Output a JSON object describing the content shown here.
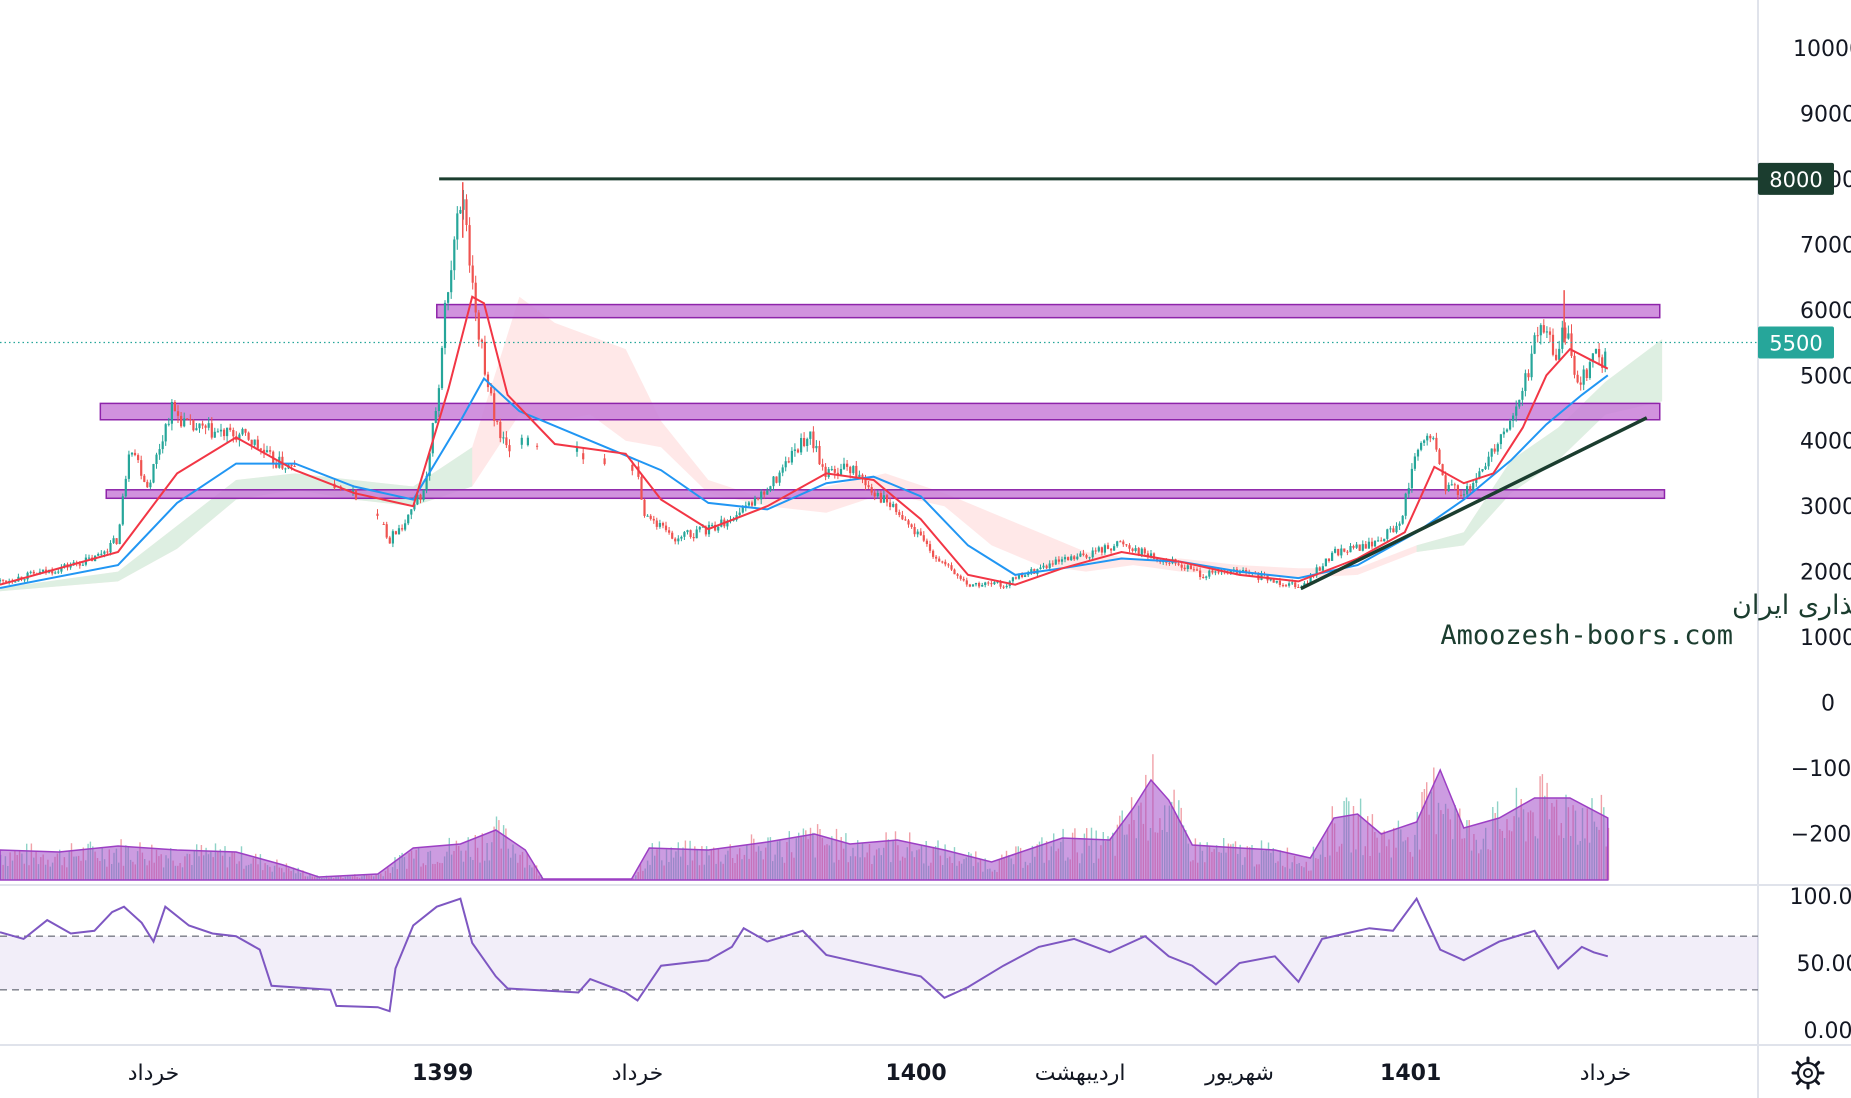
{
  "chart_data": {
    "type": "candlestick",
    "price_axis": {
      "ticks": [
        "10000",
        "9000",
        "8000",
        "7000",
        "6000",
        "5000",
        "4000",
        "3000",
        "2000",
        "1000",
        "0",
        "−1000",
        "−2000"
      ],
      "range": [
        -2400,
        10300
      ]
    },
    "rsi_axis": {
      "ticks": [
        "100.00",
        "50.00",
        "0.00"
      ],
      "upper_band": 70,
      "lower_band": 30
    },
    "time_axis": [
      {
        "label": "خرداد",
        "bold": false
      },
      {
        "label": "1399",
        "bold": true
      },
      {
        "label": "خرداد",
        "bold": false
      },
      {
        "label": "1400",
        "bold": true
      },
      {
        "label": "اردیبهشت",
        "bold": false
      },
      {
        "label": "شهریور",
        "bold": false
      },
      {
        "label": "1401",
        "bold": true
      },
      {
        "label": "خرداد",
        "bold": false
      }
    ],
    "badges": [
      {
        "label": "8000",
        "value": 8000,
        "color": "#1b3d2f"
      },
      {
        "label": "5500",
        "value": 5500,
        "color": "#26a69a"
      }
    ],
    "horizontal_line": {
      "value": 8000,
      "color": "#1b3d2f"
    },
    "zones": [
      {
        "from": 5880,
        "to": 6080,
        "color": "#c97fd8"
      },
      {
        "from": 4320,
        "to": 4570,
        "color": "#c97fd8"
      },
      {
        "from": 3120,
        "to": 3250,
        "color": "#c97fd8"
      }
    ],
    "trendline": {
      "from_value": 1740,
      "to_value": 4350,
      "color": "#1b3d2f"
    },
    "close_path": [
      [
        0,
        1850
      ],
      [
        40,
        2000
      ],
      [
        80,
        2200
      ],
      [
        100,
        2500
      ],
      [
        110,
        4000
      ],
      [
        125,
        3300
      ],
      [
        145,
        4500
      ],
      [
        160,
        4200
      ],
      [
        190,
        4100
      ],
      [
        210,
        4050
      ],
      [
        230,
        3700
      ],
      [
        280,
        3350
      ],
      [
        310,
        3100
      ],
      [
        330,
        2500
      ],
      [
        345,
        2800
      ],
      [
        360,
        3300
      ],
      [
        370,
        4600
      ],
      [
        380,
        6500
      ],
      [
        392,
        7800
      ],
      [
        402,
        6000
      ],
      [
        410,
        5200
      ],
      [
        420,
        4200
      ],
      [
        430,
        3950
      ],
      [
        470,
        3900
      ],
      [
        540,
        3600
      ],
      [
        545,
        2900
      ],
      [
        570,
        2500
      ],
      [
        600,
        2650
      ],
      [
        630,
        2900
      ],
      [
        650,
        3250
      ],
      [
        665,
        3600
      ],
      [
        685,
        4100
      ],
      [
        700,
        3500
      ],
      [
        720,
        3600
      ],
      [
        740,
        3250
      ],
      [
        760,
        2900
      ],
      [
        780,
        2500
      ],
      [
        800,
        2100
      ],
      [
        820,
        1800
      ],
      [
        850,
        1800
      ],
      [
        880,
        2050
      ],
      [
        920,
        2250
      ],
      [
        950,
        2450
      ],
      [
        980,
        2200
      ],
      [
        1000,
        2100
      ],
      [
        1020,
        1950
      ],
      [
        1050,
        2000
      ],
      [
        1080,
        1850
      ],
      [
        1105,
        1800
      ],
      [
        1130,
        2300
      ],
      [
        1160,
        2400
      ],
      [
        1185,
        2700
      ],
      [
        1200,
        3800
      ],
      [
        1212,
        4100
      ],
      [
        1225,
        3300
      ],
      [
        1245,
        3200
      ],
      [
        1265,
        3900
      ],
      [
        1285,
        4500
      ],
      [
        1295,
        5100
      ],
      [
        1305,
        5800
      ],
      [
        1318,
        5300
      ],
      [
        1325,
        5700
      ],
      [
        1338,
        4900
      ],
      [
        1350,
        5300
      ],
      [
        1362,
        5200
      ]
    ],
    "ma_fast": [
      [
        0,
        1800
      ],
      [
        100,
        2300
      ],
      [
        150,
        3500
      ],
      [
        200,
        4050
      ],
      [
        250,
        3550
      ],
      [
        300,
        3200
      ],
      [
        350,
        3000
      ],
      [
        380,
        4800
      ],
      [
        400,
        6200
      ],
      [
        410,
        6100
      ],
      [
        430,
        4700
      ],
      [
        470,
        3950
      ],
      [
        530,
        3800
      ],
      [
        560,
        3100
      ],
      [
        600,
        2650
      ],
      [
        650,
        3000
      ],
      [
        700,
        3500
      ],
      [
        740,
        3400
      ],
      [
        780,
        2800
      ],
      [
        820,
        1950
      ],
      [
        860,
        1800
      ],
      [
        900,
        2050
      ],
      [
        950,
        2300
      ],
      [
        1000,
        2150
      ],
      [
        1050,
        1950
      ],
      [
        1100,
        1850
      ],
      [
        1150,
        2200
      ],
      [
        1190,
        2600
      ],
      [
        1215,
        3600
      ],
      [
        1240,
        3350
      ],
      [
        1265,
        3500
      ],
      [
        1290,
        4200
      ],
      [
        1310,
        5000
      ],
      [
        1330,
        5400
      ],
      [
        1362,
        5100
      ]
    ],
    "ma_slow": [
      [
        0,
        1750
      ],
      [
        100,
        2100
      ],
      [
        150,
        3050
      ],
      [
        200,
        3650
      ],
      [
        250,
        3650
      ],
      [
        300,
        3300
      ],
      [
        350,
        3100
      ],
      [
        390,
        4300
      ],
      [
        410,
        4950
      ],
      [
        440,
        4450
      ],
      [
        500,
        4000
      ],
      [
        560,
        3550
      ],
      [
        600,
        3050
      ],
      [
        650,
        2950
      ],
      [
        700,
        3350
      ],
      [
        740,
        3450
      ],
      [
        780,
        3150
      ],
      [
        820,
        2400
      ],
      [
        860,
        1950
      ],
      [
        900,
        2050
      ],
      [
        950,
        2200
      ],
      [
        1000,
        2150
      ],
      [
        1050,
        2000
      ],
      [
        1100,
        1900
      ],
      [
        1150,
        2100
      ],
      [
        1200,
        2600
      ],
      [
        1240,
        3100
      ],
      [
        1280,
        3700
      ],
      [
        1310,
        4250
      ],
      [
        1340,
        4700
      ],
      [
        1362,
        5000
      ]
    ],
    "cloud": [
      [
        0,
        1750,
        1700
      ],
      [
        100,
        2000,
        1850
      ],
      [
        150,
        2700,
        2350
      ],
      [
        200,
        3400,
        3100
      ],
      [
        250,
        3500,
        3250
      ],
      [
        300,
        3400,
        3100
      ],
      [
        350,
        3300,
        3000
      ],
      [
        400,
        3900,
        3300
      ],
      [
        440,
        6200,
        4400
      ],
      [
        470,
        5800,
        4300
      ],
      [
        500,
        5600,
        4400
      ],
      [
        530,
        5400,
        4000
      ],
      [
        560,
        4300,
        3900
      ],
      [
        600,
        3400,
        3200
      ],
      [
        650,
        3100,
        3000
      ],
      [
        700,
        3300,
        2900
      ],
      [
        750,
        3500,
        3200
      ],
      [
        800,
        3200,
        3000
      ],
      [
        840,
        2900,
        2400
      ],
      [
        880,
        2600,
        2100
      ],
      [
        920,
        2300,
        2000
      ],
      [
        960,
        2200,
        2100
      ],
      [
        1000,
        2200,
        2000
      ],
      [
        1050,
        2100,
        1950
      ],
      [
        1100,
        2050,
        1900
      ],
      [
        1150,
        2050,
        1950
      ],
      [
        1200,
        2400,
        2300
      ],
      [
        1240,
        2600,
        2400
      ],
      [
        1280,
        3700,
        3200
      ],
      [
        1320,
        4200,
        3700
      ],
      [
        1360,
        4900,
        4400
      ],
      [
        1408,
        5550,
        4600
      ]
    ],
    "volume_profile": [
      [
        0,
        0.3
      ],
      [
        50,
        0.28
      ],
      [
        100,
        0.34
      ],
      [
        150,
        0.3
      ],
      [
        200,
        0.28
      ],
      [
        240,
        0.15
      ],
      [
        270,
        0.03
      ],
      [
        320,
        0.06
      ],
      [
        350,
        0.32
      ],
      [
        390,
        0.36
      ],
      [
        420,
        0.5
      ],
      [
        445,
        0.3
      ],
      [
        460,
        0.01
      ],
      [
        535,
        0.01
      ],
      [
        550,
        0.32
      ],
      [
        600,
        0.3
      ],
      [
        650,
        0.38
      ],
      [
        690,
        0.46
      ],
      [
        720,
        0.36
      ],
      [
        760,
        0.4
      ],
      [
        800,
        0.3
      ],
      [
        840,
        0.18
      ],
      [
        860,
        0.26
      ],
      [
        900,
        0.42
      ],
      [
        940,
        0.4
      ],
      [
        960,
        0.72
      ],
      [
        975,
        1.0
      ],
      [
        990,
        0.8
      ],
      [
        1010,
        0.35
      ],
      [
        1050,
        0.32
      ],
      [
        1080,
        0.3
      ],
      [
        1110,
        0.22
      ],
      [
        1130,
        0.62
      ],
      [
        1150,
        0.66
      ],
      [
        1170,
        0.46
      ],
      [
        1200,
        0.58
      ],
      [
        1220,
        1.1
      ],
      [
        1240,
        0.52
      ],
      [
        1270,
        0.62
      ],
      [
        1300,
        0.82
      ],
      [
        1330,
        0.82
      ],
      [
        1362,
        0.62
      ]
    ],
    "rsi": [
      [
        0,
        73
      ],
      [
        20,
        68
      ],
      [
        40,
        82
      ],
      [
        60,
        72
      ],
      [
        80,
        74
      ],
      [
        95,
        88
      ],
      [
        105,
        92
      ],
      [
        120,
        80
      ],
      [
        130,
        66
      ],
      [
        140,
        92
      ],
      [
        160,
        78
      ],
      [
        180,
        72
      ],
      [
        200,
        70
      ],
      [
        220,
        60
      ],
      [
        230,
        33
      ],
      [
        280,
        30
      ],
      [
        285,
        18
      ],
      [
        320,
        17
      ],
      [
        330,
        14
      ],
      [
        335,
        46
      ],
      [
        350,
        78
      ],
      [
        370,
        92
      ],
      [
        390,
        98
      ],
      [
        400,
        65
      ],
      [
        420,
        40
      ],
      [
        430,
        31
      ],
      [
        490,
        28
      ],
      [
        500,
        38
      ],
      [
        530,
        28
      ],
      [
        540,
        22
      ],
      [
        560,
        48
      ],
      [
        600,
        52
      ],
      [
        620,
        62
      ],
      [
        630,
        76
      ],
      [
        650,
        66
      ],
      [
        680,
        74
      ],
      [
        700,
        56
      ],
      [
        740,
        48
      ],
      [
        780,
        40
      ],
      [
        800,
        24
      ],
      [
        820,
        32
      ],
      [
        850,
        48
      ],
      [
        880,
        62
      ],
      [
        910,
        68
      ],
      [
        940,
        58
      ],
      [
        970,
        70
      ],
      [
        990,
        55
      ],
      [
        1010,
        48
      ],
      [
        1030,
        34
      ],
      [
        1050,
        50
      ],
      [
        1080,
        55
      ],
      [
        1100,
        36
      ],
      [
        1120,
        68
      ],
      [
        1140,
        72
      ],
      [
        1160,
        76
      ],
      [
        1180,
        74
      ],
      [
        1200,
        98
      ],
      [
        1220,
        60
      ],
      [
        1240,
        52
      ],
      [
        1270,
        66
      ],
      [
        1300,
        74
      ],
      [
        1320,
        46
      ],
      [
        1340,
        62
      ],
      [
        1350,
        58
      ],
      [
        1362,
        55
      ]
    ]
  },
  "watermark": {
    "line1": "انجمن خبرگان سرمایه گذاری ایران",
    "line2": "Amoozesh-boors.com"
  },
  "settings_icon": "gear-icon"
}
